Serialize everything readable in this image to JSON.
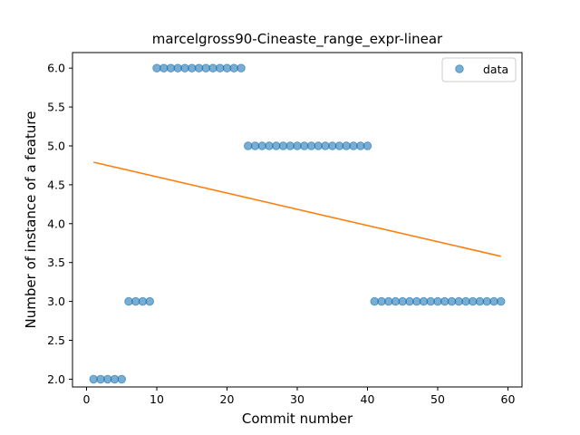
{
  "chart_data": {
    "type": "scatter",
    "title": "marcelgross90-Cineaste_range_expr-linear",
    "xlabel": "Commit number",
    "ylabel": "Number of instance of a feature",
    "xlim": [
      -2,
      62
    ],
    "ylim": [
      1.9,
      6.2
    ],
    "xticks": [
      0,
      10,
      20,
      30,
      40,
      50,
      60
    ],
    "yticks": [
      2.0,
      2.5,
      3.0,
      3.5,
      4.0,
      4.5,
      5.0,
      5.5,
      6.0
    ],
    "grid": false,
    "legend": {
      "placement": "top-right",
      "entries": [
        "data"
      ]
    },
    "colors": {
      "data": "#1f77b4",
      "fit": "#ff7f0e"
    },
    "series": [
      {
        "name": "data",
        "kind": "scatter",
        "x": [
          1,
          2,
          3,
          4,
          5,
          6,
          7,
          8,
          9,
          10,
          11,
          12,
          13,
          14,
          15,
          16,
          17,
          18,
          19,
          20,
          21,
          22,
          23,
          24,
          25,
          26,
          27,
          28,
          29,
          30,
          31,
          32,
          33,
          34,
          35,
          36,
          37,
          38,
          39,
          40,
          41,
          42,
          43,
          44,
          45,
          46,
          47,
          48,
          49,
          50,
          51,
          52,
          53,
          54,
          55,
          56,
          57,
          58,
          59
        ],
        "y": [
          2,
          2,
          2,
          2,
          2,
          3,
          3,
          3,
          3,
          6,
          6,
          6,
          6,
          6,
          6,
          6,
          6,
          6,
          6,
          6,
          6,
          6,
          5,
          5,
          5,
          5,
          5,
          5,
          5,
          5,
          5,
          5,
          5,
          5,
          5,
          5,
          5,
          5,
          5,
          5,
          3,
          3,
          3,
          3,
          3,
          3,
          3,
          3,
          3,
          3,
          3,
          3,
          3,
          3,
          3,
          3,
          3,
          3,
          3
        ]
      },
      {
        "kind": "line",
        "x": [
          1,
          59
        ],
        "y": [
          4.79,
          3.58
        ]
      }
    ]
  }
}
